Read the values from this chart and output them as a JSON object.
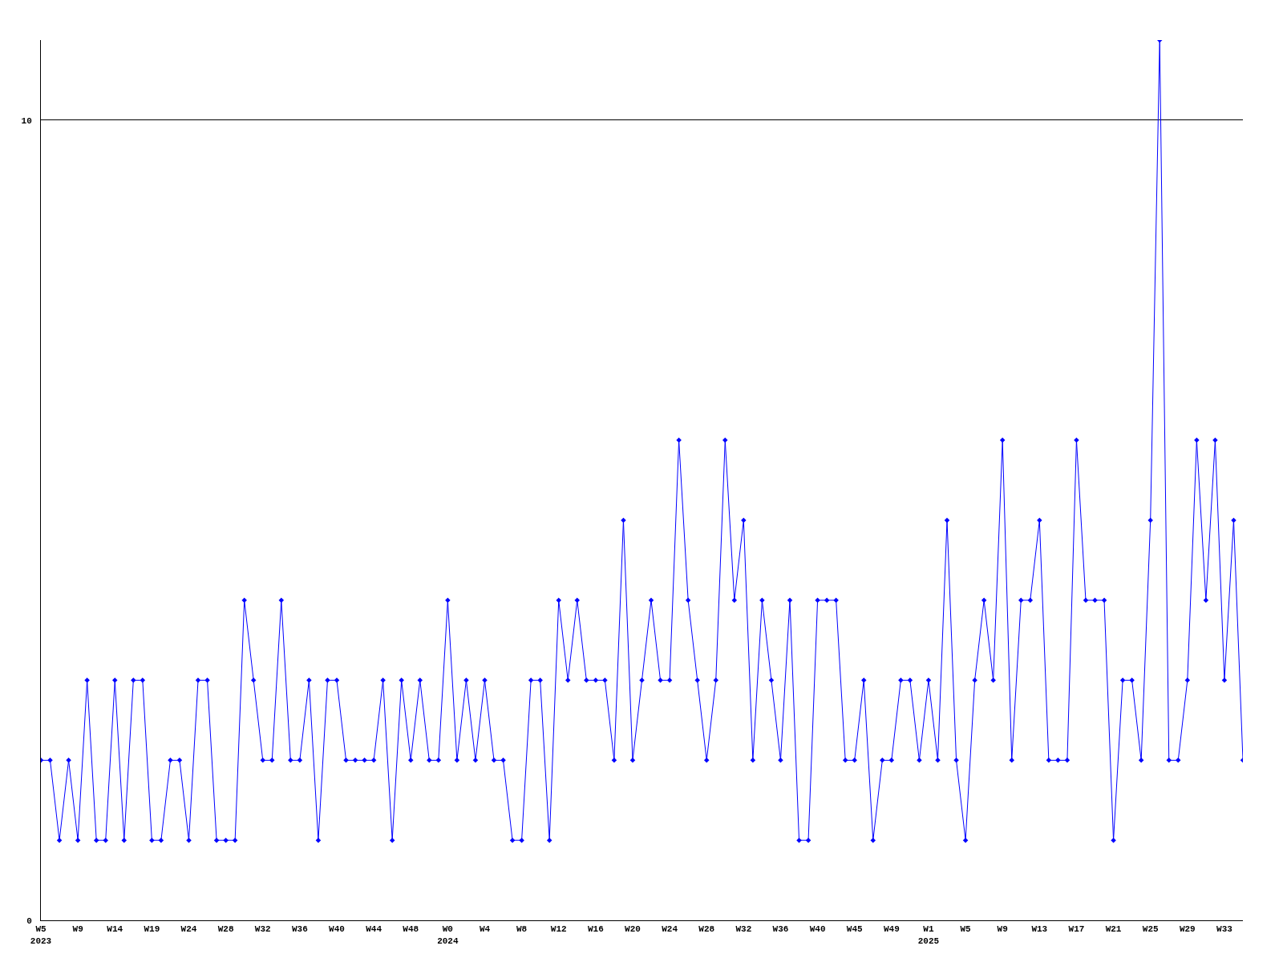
{
  "chart_data": {
    "type": "line",
    "categories": [
      "W5\n2023",
      null,
      null,
      null,
      "W9",
      null,
      null,
      null,
      "W14",
      null,
      null,
      null,
      "W19",
      null,
      null,
      null,
      "W24",
      null,
      null,
      null,
      "W28",
      null,
      null,
      null,
      "W32",
      null,
      null,
      null,
      "W36",
      null,
      null,
      null,
      "W40",
      null,
      null,
      null,
      "W44",
      null,
      null,
      null,
      "W48",
      null,
      null,
      null,
      "W0\n2024",
      null,
      null,
      null,
      "W4",
      null,
      null,
      null,
      "W8",
      null,
      null,
      null,
      "W12",
      null,
      null,
      null,
      "W16",
      null,
      null,
      null,
      "W20",
      null,
      null,
      null,
      "W24",
      null,
      null,
      null,
      "W28",
      null,
      null,
      null,
      "W32",
      null,
      null,
      null,
      "W36",
      null,
      null,
      null,
      "W40",
      null,
      null,
      null,
      "W45",
      null,
      null,
      null,
      "W49",
      null,
      null,
      null,
      "W1\n2025",
      null,
      null,
      null,
      "W5",
      null,
      null,
      null,
      "W9",
      null,
      null,
      null,
      "W13",
      null,
      null,
      null,
      "W17",
      null,
      null,
      null,
      "W21",
      null,
      null,
      null,
      "W25",
      null,
      null,
      null,
      "W29",
      null,
      null,
      null,
      "W33",
      null,
      null
    ],
    "series": [
      {
        "color": "#0000ff",
        "values": [
          2,
          2,
          1,
          2,
          1,
          3,
          1,
          1,
          3,
          1,
          3,
          3,
          1,
          1,
          2,
          2,
          1,
          3,
          3,
          1,
          1,
          1,
          4,
          3,
          2,
          2,
          4,
          2,
          2,
          3,
          1,
          3,
          3,
          2,
          2,
          2,
          2,
          3,
          1,
          3,
          2,
          3,
          2,
          2,
          4,
          2,
          3,
          2,
          3,
          2,
          2,
          1,
          1,
          3,
          3,
          1,
          4,
          3,
          4,
          3,
          3,
          3,
          2,
          5,
          2,
          3,
          4,
          3,
          3,
          6,
          4,
          3,
          2,
          3,
          6,
          4,
          5,
          2,
          4,
          3,
          2,
          4,
          1,
          1,
          4,
          4,
          4,
          2,
          2,
          3,
          1,
          2,
          2,
          3,
          3,
          2,
          3,
          2,
          5,
          2,
          1,
          3,
          4,
          3,
          6,
          2,
          4,
          4,
          5,
          2,
          2,
          2,
          6,
          4,
          4,
          4,
          1,
          3,
          3,
          2,
          5,
          11,
          2,
          2,
          3,
          6,
          4,
          6,
          3,
          5,
          2
        ]
      }
    ],
    "ylim": [
      0,
      11
    ],
    "yticks": [
      0,
      10
    ],
    "grid": "y",
    "marker": "diamond",
    "line_style": "solid"
  }
}
